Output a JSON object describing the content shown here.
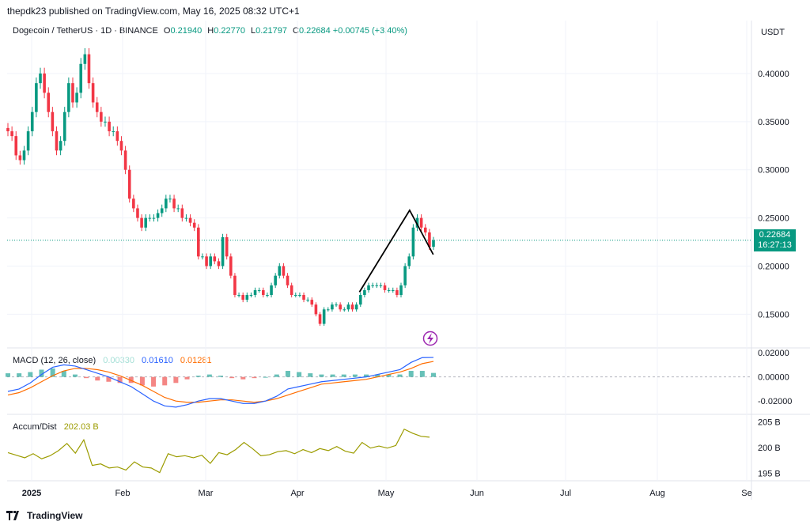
{
  "header": {
    "published": "thepdk23 published on TradingView.com, May 16, 2025 08:32 UTC+1"
  },
  "legend": {
    "symbol": "Dogecoin / TetherUS · 1D · BINANCE",
    "o_label": "O",
    "o": "0.21940",
    "h_label": "H",
    "h": "0.22770",
    "l_label": "L",
    "l": "0.21797",
    "c_label": "C",
    "c": "0.22684",
    "change": "+0.00745 (+3.40%)"
  },
  "currency": "USDT",
  "last_price": {
    "value": "0.22684",
    "countdown": "16:27:13"
  },
  "macd_legend": {
    "name": "MACD (12, 26, close)",
    "hist": "0.00330",
    "macd": "0.01610",
    "signal": "0.01281"
  },
  "ad_legend": {
    "name": "Accum/Dist",
    "value": "202.03 B"
  },
  "footer": {
    "brand": "TradingView"
  },
  "colors": {
    "up": "#089981",
    "down": "#F23645",
    "macd": "#2962FF",
    "signal": "#FF6D00",
    "ad": "#9c9c00"
  },
  "chart_data": [
    {
      "type": "candlestick",
      "title": "Dogecoin / TetherUS · 1D · BINANCE",
      "x_tick_labels": [
        "2025",
        "Feb",
        "Mar",
        "Apr",
        "May",
        "Jun",
        "Jul",
        "Aug",
        "Se"
      ],
      "y_tick_labels": [
        "0.40000",
        "0.35000",
        "0.30000",
        "0.25000",
        "0.20000",
        "0.15000"
      ],
      "ylim": [
        0.115,
        0.455
      ],
      "grid": true,
      "close": [
        0.34,
        0.335,
        0.315,
        0.31,
        0.32,
        0.34,
        0.36,
        0.39,
        0.4,
        0.38,
        0.36,
        0.34,
        0.32,
        0.33,
        0.36,
        0.39,
        0.37,
        0.38,
        0.41,
        0.42,
        0.39,
        0.37,
        0.36,
        0.35,
        0.35,
        0.34,
        0.34,
        0.33,
        0.32,
        0.3,
        0.27,
        0.26,
        0.25,
        0.24,
        0.25,
        0.25,
        0.25,
        0.255,
        0.26,
        0.27,
        0.27,
        0.26,
        0.26,
        0.25,
        0.25,
        0.245,
        0.24,
        0.21,
        0.21,
        0.2,
        0.21,
        0.205,
        0.2,
        0.23,
        0.21,
        0.19,
        0.17,
        0.17,
        0.165,
        0.17,
        0.17,
        0.175,
        0.175,
        0.17,
        0.17,
        0.18,
        0.19,
        0.2,
        0.19,
        0.18,
        0.17,
        0.17,
        0.17,
        0.165,
        0.165,
        0.16,
        0.15,
        0.14,
        0.155,
        0.155,
        0.16,
        0.16,
        0.155,
        0.155,
        0.16,
        0.155,
        0.16,
        0.17,
        0.175,
        0.18,
        0.18,
        0.18,
        0.18,
        0.175,
        0.175,
        0.175,
        0.17,
        0.18,
        0.2,
        0.21,
        0.24,
        0.25,
        0.24,
        0.235,
        0.22,
        0.22684
      ],
      "annotations": [
        {
          "type": "trendline",
          "points": [
            [
              "2025-04-22",
              0.173
            ],
            [
              "2025-05-09",
              0.258
            ],
            [
              "2025-05-17",
              0.212
            ]
          ]
        }
      ]
    },
    {
      "type": "line",
      "title": "MACD (12, 26, close)",
      "y_tick_labels": [
        "0.02000",
        "0.00000",
        "-0.02000"
      ],
      "ylim": [
        -0.031,
        0.024
      ],
      "series": [
        {
          "name": "MACD",
          "values": [
            -0.012,
            -0.01,
            -0.005,
            0.002,
            0.008,
            0.01,
            0.009,
            0.006,
            0.003,
            0.0,
            -0.004,
            -0.008,
            -0.014,
            -0.02,
            -0.024,
            -0.025,
            -0.023,
            -0.02,
            -0.018,
            -0.018,
            -0.02,
            -0.022,
            -0.022,
            -0.02,
            -0.016,
            -0.01,
            -0.008,
            -0.006,
            -0.004,
            -0.003,
            -0.002,
            -0.001,
            0.0,
            0.002,
            0.004,
            0.006,
            0.012,
            0.016,
            0.0161
          ]
        },
        {
          "name": "Signal",
          "values": [
            -0.015,
            -0.013,
            -0.009,
            -0.004,
            0.001,
            0.005,
            0.007,
            0.007,
            0.006,
            0.004,
            0.001,
            -0.003,
            -0.007,
            -0.012,
            -0.017,
            -0.02,
            -0.021,
            -0.021,
            -0.02,
            -0.019,
            -0.019,
            -0.02,
            -0.021,
            -0.02,
            -0.018,
            -0.015,
            -0.012,
            -0.009,
            -0.006,
            -0.005,
            -0.004,
            -0.003,
            -0.002,
            0.0,
            0.002,
            0.004,
            0.007,
            0.011,
            0.01281
          ]
        }
      ]
    },
    {
      "type": "line",
      "title": "Accum/Dist",
      "y_tick_labels": [
        "205 B",
        "200 B",
        "195 B"
      ],
      "ylim": [
        193.5,
        206.5
      ],
      "series": [
        {
          "name": "Accum/Dist",
          "values": [
            199.0,
            198.5,
            198.0,
            198.8,
            197.8,
            198.4,
            199.4,
            200.8,
            198.9,
            201.5,
            196.5,
            196.8,
            196.0,
            196.2,
            195.6,
            197.2,
            196.2,
            196.0,
            195.1,
            198.8,
            198.2,
            198.4,
            198.0,
            198.5,
            196.9,
            199.0,
            198.6,
            199.6,
            201.0,
            199.8,
            198.4,
            198.6,
            199.2,
            199.4,
            198.8,
            199.6,
            199.0,
            199.8,
            199.4,
            200.2,
            199.3,
            198.9,
            201.0,
            199.9,
            200.3,
            199.9,
            200.4,
            203.6,
            202.8,
            202.2,
            202.03
          ]
        }
      ]
    }
  ]
}
